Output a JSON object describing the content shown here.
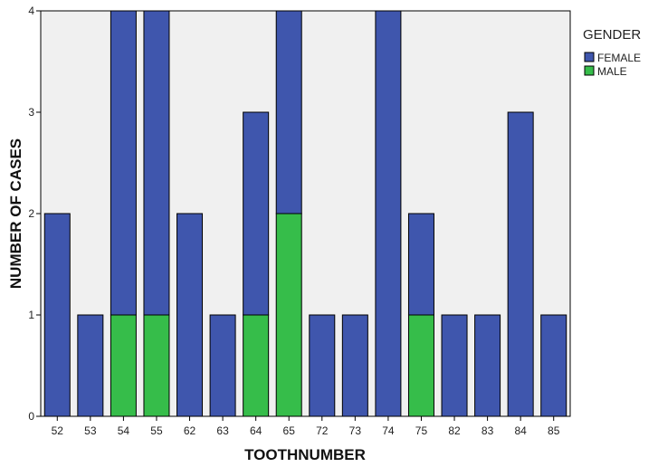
{
  "chart_data": {
    "type": "bar",
    "stacked": true,
    "categories": [
      "52",
      "53",
      "54",
      "55",
      "62",
      "63",
      "64",
      "65",
      "72",
      "73",
      "74",
      "75",
      "82",
      "83",
      "84",
      "85"
    ],
    "series": [
      {
        "name": "MALE",
        "values": [
          0,
          0,
          1,
          1,
          0,
          0,
          1,
          2,
          0,
          0,
          0,
          1,
          0,
          0,
          0,
          0
        ],
        "color": "#36bd4a"
      },
      {
        "name": "FEMALE",
        "values": [
          2,
          1,
          3,
          3,
          2,
          1,
          2,
          2,
          1,
          1,
          4,
          1,
          1,
          1,
          3,
          1
        ],
        "color": "#3f56ad"
      }
    ],
    "xlabel": "TOOTHNUMBER",
    "ylabel": "NUMBER OF CASES",
    "ylim": [
      0,
      4
    ],
    "yticks": [
      "0",
      "1",
      "2",
      "3",
      "4"
    ],
    "grid": false,
    "plot_background": "#f0f0f0",
    "legend": {
      "title": "GENDER",
      "position": "top-right",
      "order": [
        "FEMALE",
        "MALE"
      ]
    }
  }
}
